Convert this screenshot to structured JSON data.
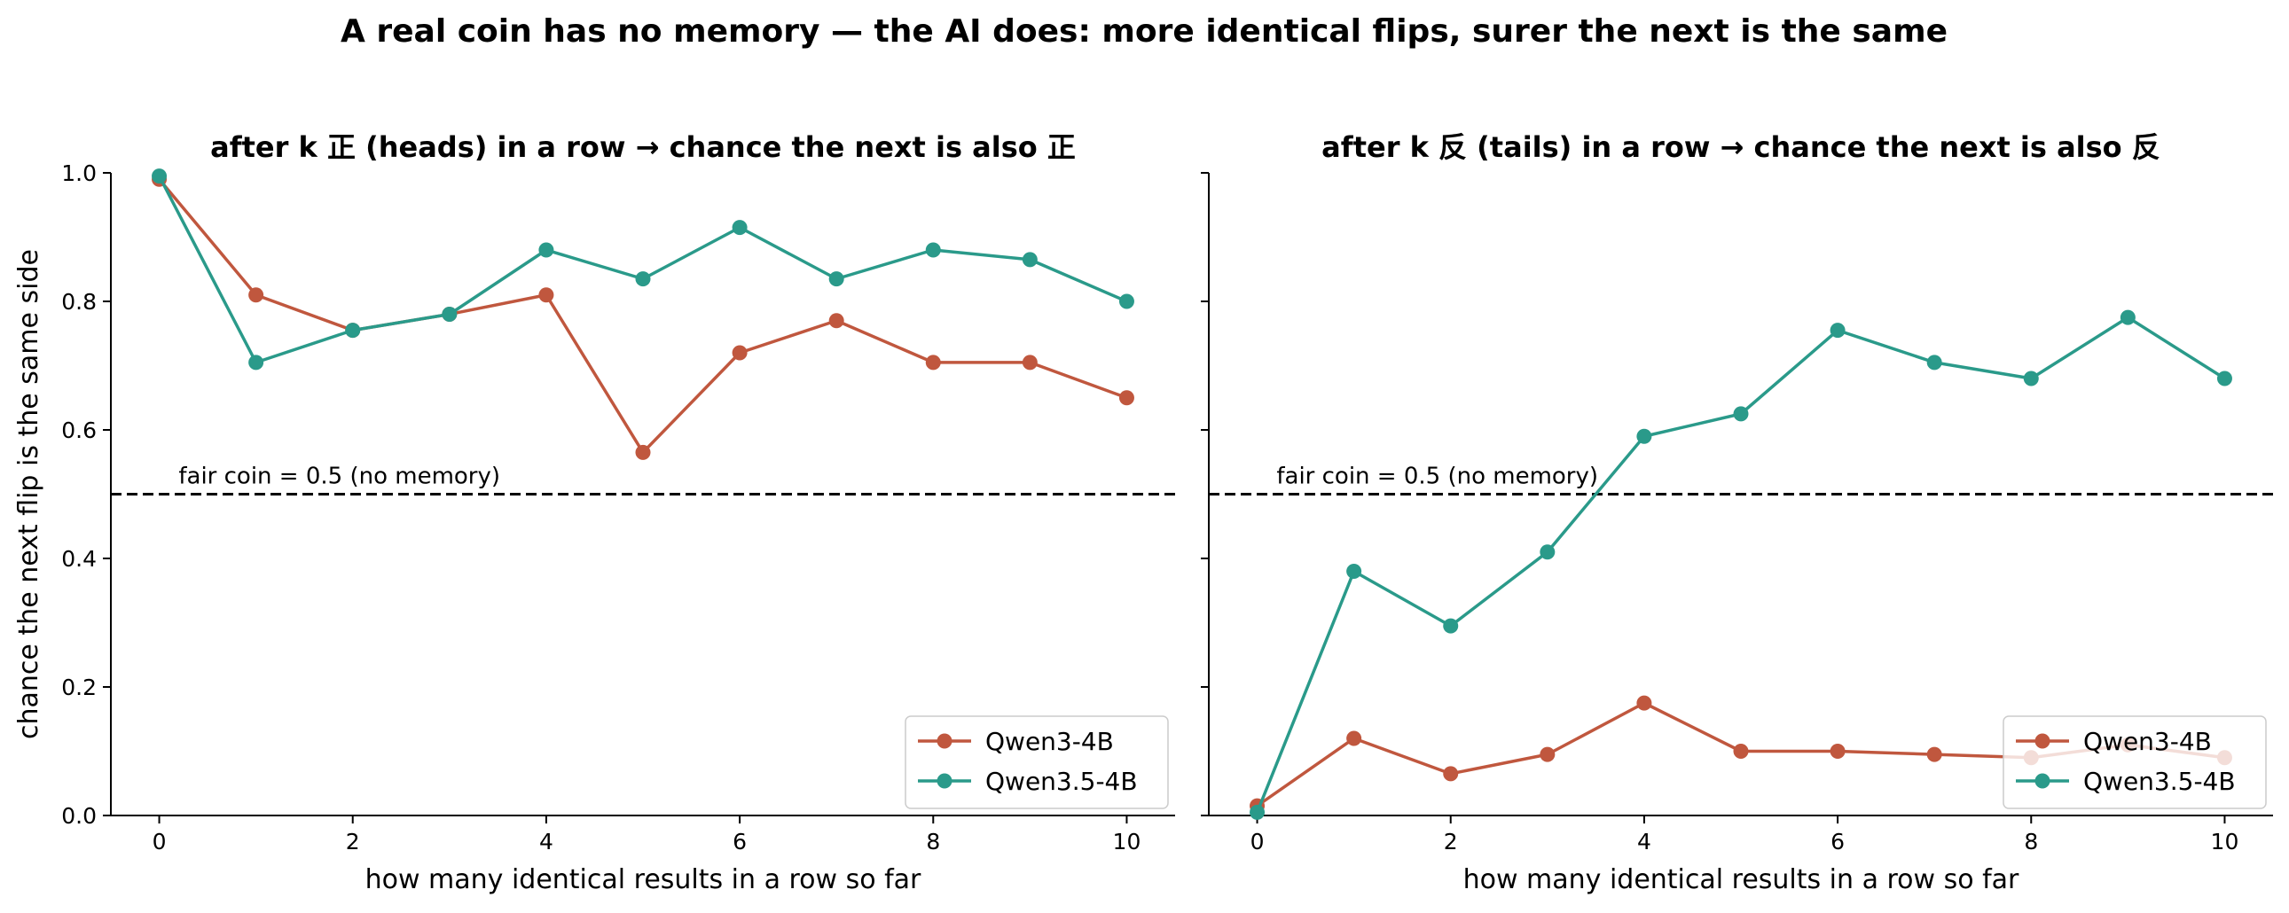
{
  "figure_title": "A real coin has no memory — the AI does: more identical flips, surer the next is the same",
  "colors": {
    "qwen3": "#c0573e",
    "qwen35": "#2a9a8a",
    "reference": "#000000"
  },
  "chart_data": [
    {
      "type": "line",
      "title": "after k 正 (heads) in a row → chance the next is also 正",
      "xlabel": "how many identical results in a row so far",
      "ylabel": "chance the next flip is the same side",
      "xlim": [
        -0.5,
        10.5
      ],
      "ylim": [
        0,
        1
      ],
      "x_ticks": [
        "0",
        "2",
        "4",
        "6",
        "8",
        "10"
      ],
      "y_ticks": [
        "0.0",
        "0.2",
        "0.4",
        "0.6",
        "0.8",
        "1.0"
      ],
      "x": [
        0,
        1,
        2,
        3,
        4,
        5,
        6,
        7,
        8,
        9,
        10
      ],
      "series": [
        {
          "name": "Qwen3-4B",
          "color": "#c0573e",
          "values": [
            0.99,
            0.81,
            0.755,
            0.78,
            0.81,
            0.565,
            0.72,
            0.77,
            0.705,
            0.705,
            0.65
          ]
        },
        {
          "name": "Qwen3.5-4B",
          "color": "#2a9a8a",
          "values": [
            0.995,
            0.705,
            0.755,
            0.78,
            0.88,
            0.835,
            0.915,
            0.835,
            0.88,
            0.865,
            0.8
          ]
        }
      ],
      "reference_line": {
        "y": 0.5,
        "label": "fair coin = 0.5 (no memory)"
      },
      "legend": "lower right",
      "grid": false
    },
    {
      "type": "line",
      "title": "after k 反 (tails) in a row → chance the next is also 反",
      "xlabel": "how many identical results in a row so far",
      "ylabel": "",
      "xlim": [
        -0.5,
        10.5
      ],
      "ylim": [
        0,
        1
      ],
      "x_ticks": [
        "0",
        "2",
        "4",
        "6",
        "8",
        "10"
      ],
      "y_ticks": [],
      "x": [
        0,
        1,
        2,
        3,
        4,
        5,
        6,
        7,
        8,
        9,
        10
      ],
      "series": [
        {
          "name": "Qwen3-4B",
          "color": "#c0573e",
          "values": [
            0.015,
            0.12,
            0.065,
            0.095,
            0.175,
            0.1,
            0.1,
            0.095,
            0.09,
            0.11,
            0.09
          ]
        },
        {
          "name": "Qwen3.5-4B",
          "color": "#2a9a8a",
          "values": [
            0.005,
            0.38,
            0.295,
            0.41,
            0.59,
            0.625,
            0.755,
            0.705,
            0.68,
            0.775,
            0.68
          ]
        }
      ],
      "reference_line": {
        "y": 0.5,
        "label": "fair coin = 0.5 (no memory)"
      },
      "legend": "lower right",
      "grid": false
    }
  ]
}
